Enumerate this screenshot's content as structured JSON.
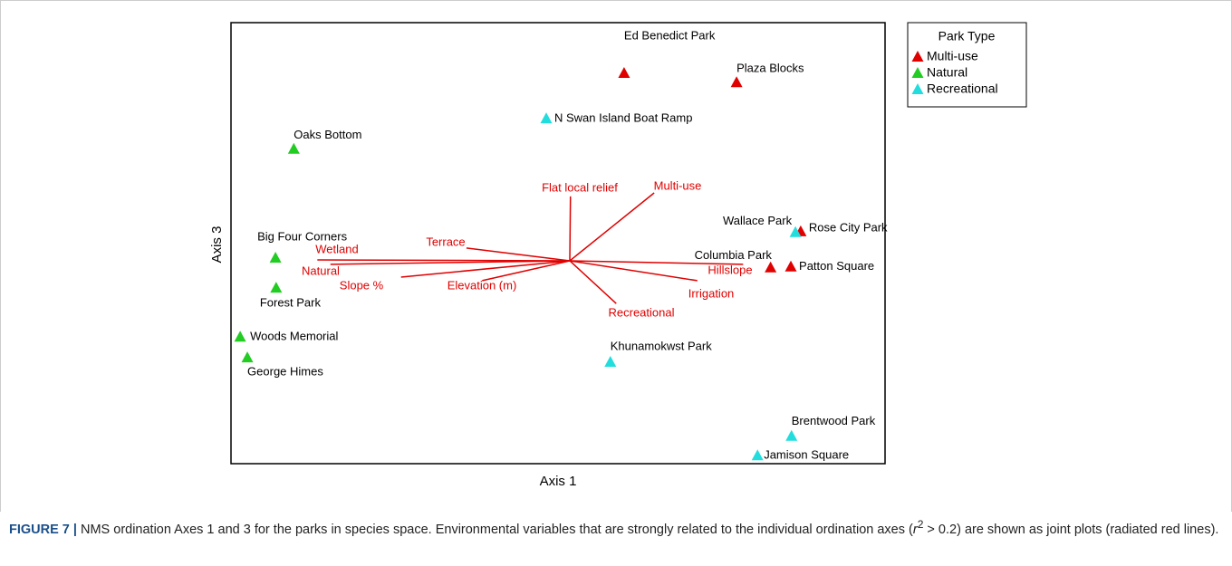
{
  "chart_data": {
    "type": "scatter",
    "xlabel": "Axis 1",
    "ylabel": "Axis 3",
    "xlim": [
      0,
      100
    ],
    "ylim": [
      0,
      100
    ],
    "legend_title": "Park Type",
    "legend": "outside right top",
    "series": [
      {
        "name": "Multi-use",
        "color": "#e00000",
        "labels": [
          "Ed Benedict Park",
          "Plaza Blocks",
          "Rose City Park",
          "Columbia Park",
          "Patton Square"
        ],
        "x": [
          60.1,
          77.3,
          87.1,
          82.5,
          85.6
        ],
        "y": [
          88.5,
          86.4,
          52.6,
          44.4,
          44.6
        ]
      },
      {
        "name": "Natural",
        "color": "#22cc22",
        "labels": [
          "Oaks Bottom",
          "Big Four Corners",
          "Forest Park",
          "Woods Memorial",
          "George Himes"
        ],
        "x": [
          9.6,
          6.8,
          6.9,
          1.4,
          2.5
        ],
        "y": [
          71.3,
          46.6,
          39.8,
          28.7,
          24.0
        ]
      },
      {
        "name": "Recreational",
        "color": "#22dddd",
        "labels": [
          "N Swan Island Boat Ramp",
          "Wallace Park",
          "Khunamokwst Park",
          "Brentwood Park",
          "Jamison Square"
        ],
        "x": [
          48.2,
          86.3,
          58.0,
          85.7,
          80.5
        ],
        "y": [
          78.2,
          52.4,
          23.0,
          6.2,
          1.8
        ]
      }
    ],
    "vector_color": "#e00000",
    "vector_origin": {
      "x": 51.8,
      "y": 46.0
    },
    "vectors": {
      "labels": [
        "Flat local relief",
        "Multi-use",
        "Wetland",
        "Terrace",
        "Natural",
        "Slope %",
        "Elevation (m)",
        "Recreational",
        "Irrigation",
        "Hillslope"
      ],
      "x": [
        51.9,
        64.7,
        13.2,
        36.0,
        15.2,
        26.0,
        38.4,
        58.9,
        71.3,
        78.3
      ],
      "y": [
        60.6,
        61.4,
        46.2,
        48.9,
        45.2,
        42.3,
        41.5,
        36.3,
        41.5,
        45.2
      ]
    }
  },
  "caption": {
    "label": "FIGURE 7 |",
    "parts": [
      "NMS ordination Axes 1 and 3 for the parks in species space. Environmental variables that are strongly related to the individual ordination axes (",
      "r",
      "2",
      " > 0.2) are shown as joint plots (radiated red lines)."
    ]
  }
}
